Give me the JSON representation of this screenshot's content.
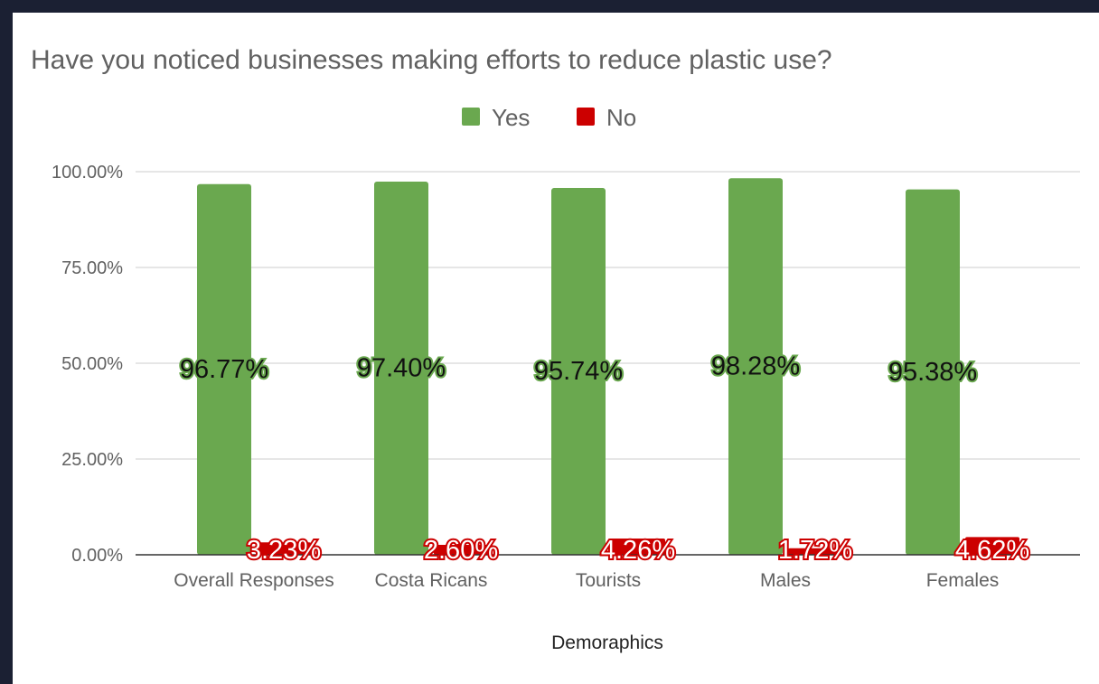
{
  "colors": {
    "yes": "#6aa84f",
    "no": "#cc0000",
    "text": "#616161",
    "grid": "#cccccc",
    "baseline": "#333333",
    "background": "#ffffff"
  },
  "chart_data": {
    "type": "bar",
    "title": "Have you noticed businesses making efforts to reduce plastic use?",
    "xlabel": "Demoraphics",
    "ylabel": "",
    "categories": [
      "Overall Responses",
      "Costa Ricans",
      "Tourists",
      "Males",
      "Females"
    ],
    "series": [
      {
        "name": "Yes",
        "color": "#6aa84f",
        "values": [
          96.77,
          97.4,
          95.74,
          98.28,
          95.38
        ],
        "labels": [
          "96.77%",
          "97.40%",
          "95.74%",
          "98.28%",
          "95.38%"
        ]
      },
      {
        "name": "No",
        "color": "#cc0000",
        "values": [
          3.23,
          2.6,
          4.26,
          1.72,
          4.62
        ],
        "labels": [
          "3.23%",
          "2.60%",
          "4.26%",
          "1.72%",
          "4.62%"
        ]
      }
    ],
    "yticks": [
      "0.00%",
      "25.00%",
      "50.00%",
      "75.00%",
      "100.00%"
    ],
    "ylim": [
      0,
      100
    ],
    "grid": true,
    "legend_position": "top-center"
  }
}
